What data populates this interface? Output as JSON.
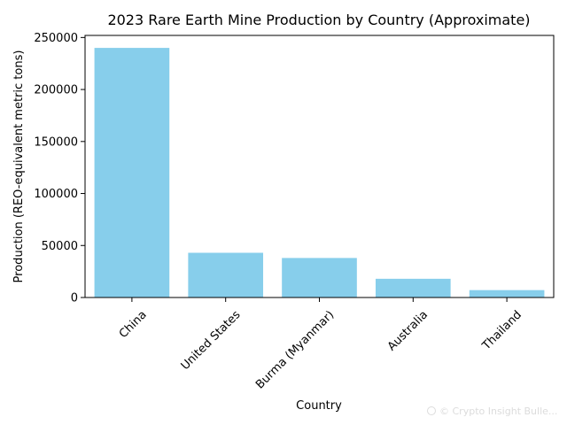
{
  "chart_data": {
    "type": "bar",
    "title": "2023 Rare Earth Mine Production by Country (Approximate)",
    "xlabel": "Country",
    "ylabel": "Production (REO-equivalent metric tons)",
    "categories": [
      "China",
      "United States",
      "Burma (Myanmar)",
      "Australia",
      "Thailand"
    ],
    "values": [
      240000,
      43000,
      38000,
      18000,
      7100
    ],
    "ylim": [
      0,
      252000
    ],
    "yticks": [
      0,
      50000,
      100000,
      150000,
      200000,
      250000
    ],
    "bar_color": "#87ceeb",
    "grid": false,
    "legend": "none",
    "x_tick_rotation": 45
  },
  "watermark": {
    "text": "© Crypto Insight Bulle..."
  }
}
